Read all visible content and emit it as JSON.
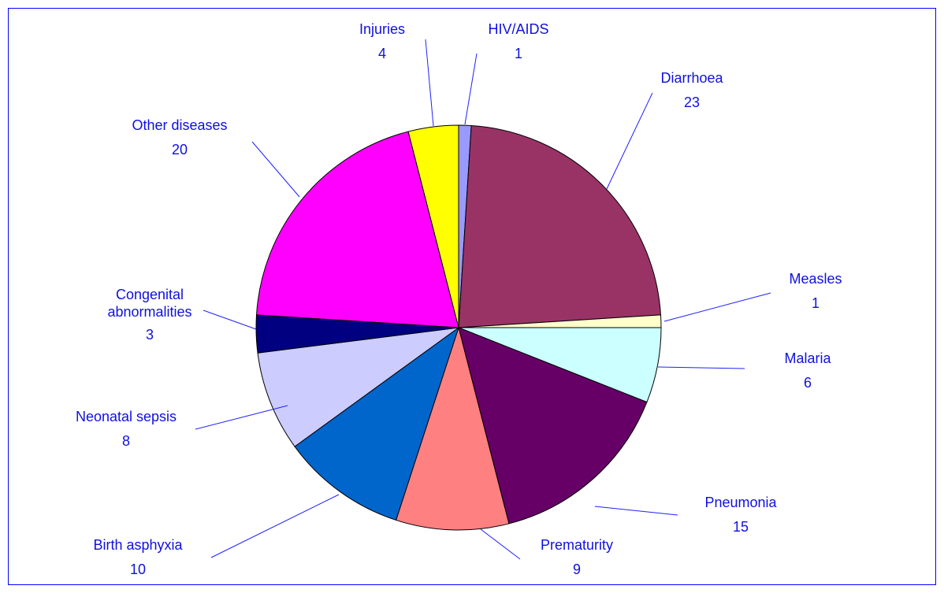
{
  "chart_data": {
    "type": "pie",
    "categories": [
      "HIV/AIDS",
      "Diarrhoea",
      "Measles",
      "Malaria",
      "Pneumonia",
      "Prematurity",
      "Birth asphyxia",
      "Neonatal sepsis",
      "Congenital abnormalities",
      "Other diseases",
      "Injuries"
    ],
    "values": [
      1,
      23,
      1,
      6,
      15,
      9,
      10,
      8,
      3,
      20,
      4
    ],
    "colors": [
      "#9999ff",
      "#993366",
      "#ffffcc",
      "#ccffff",
      "#660066",
      "#ff8080",
      "#0066cc",
      "#ccccff",
      "#000080",
      "#ff00ff",
      "#ffff00"
    ]
  }
}
